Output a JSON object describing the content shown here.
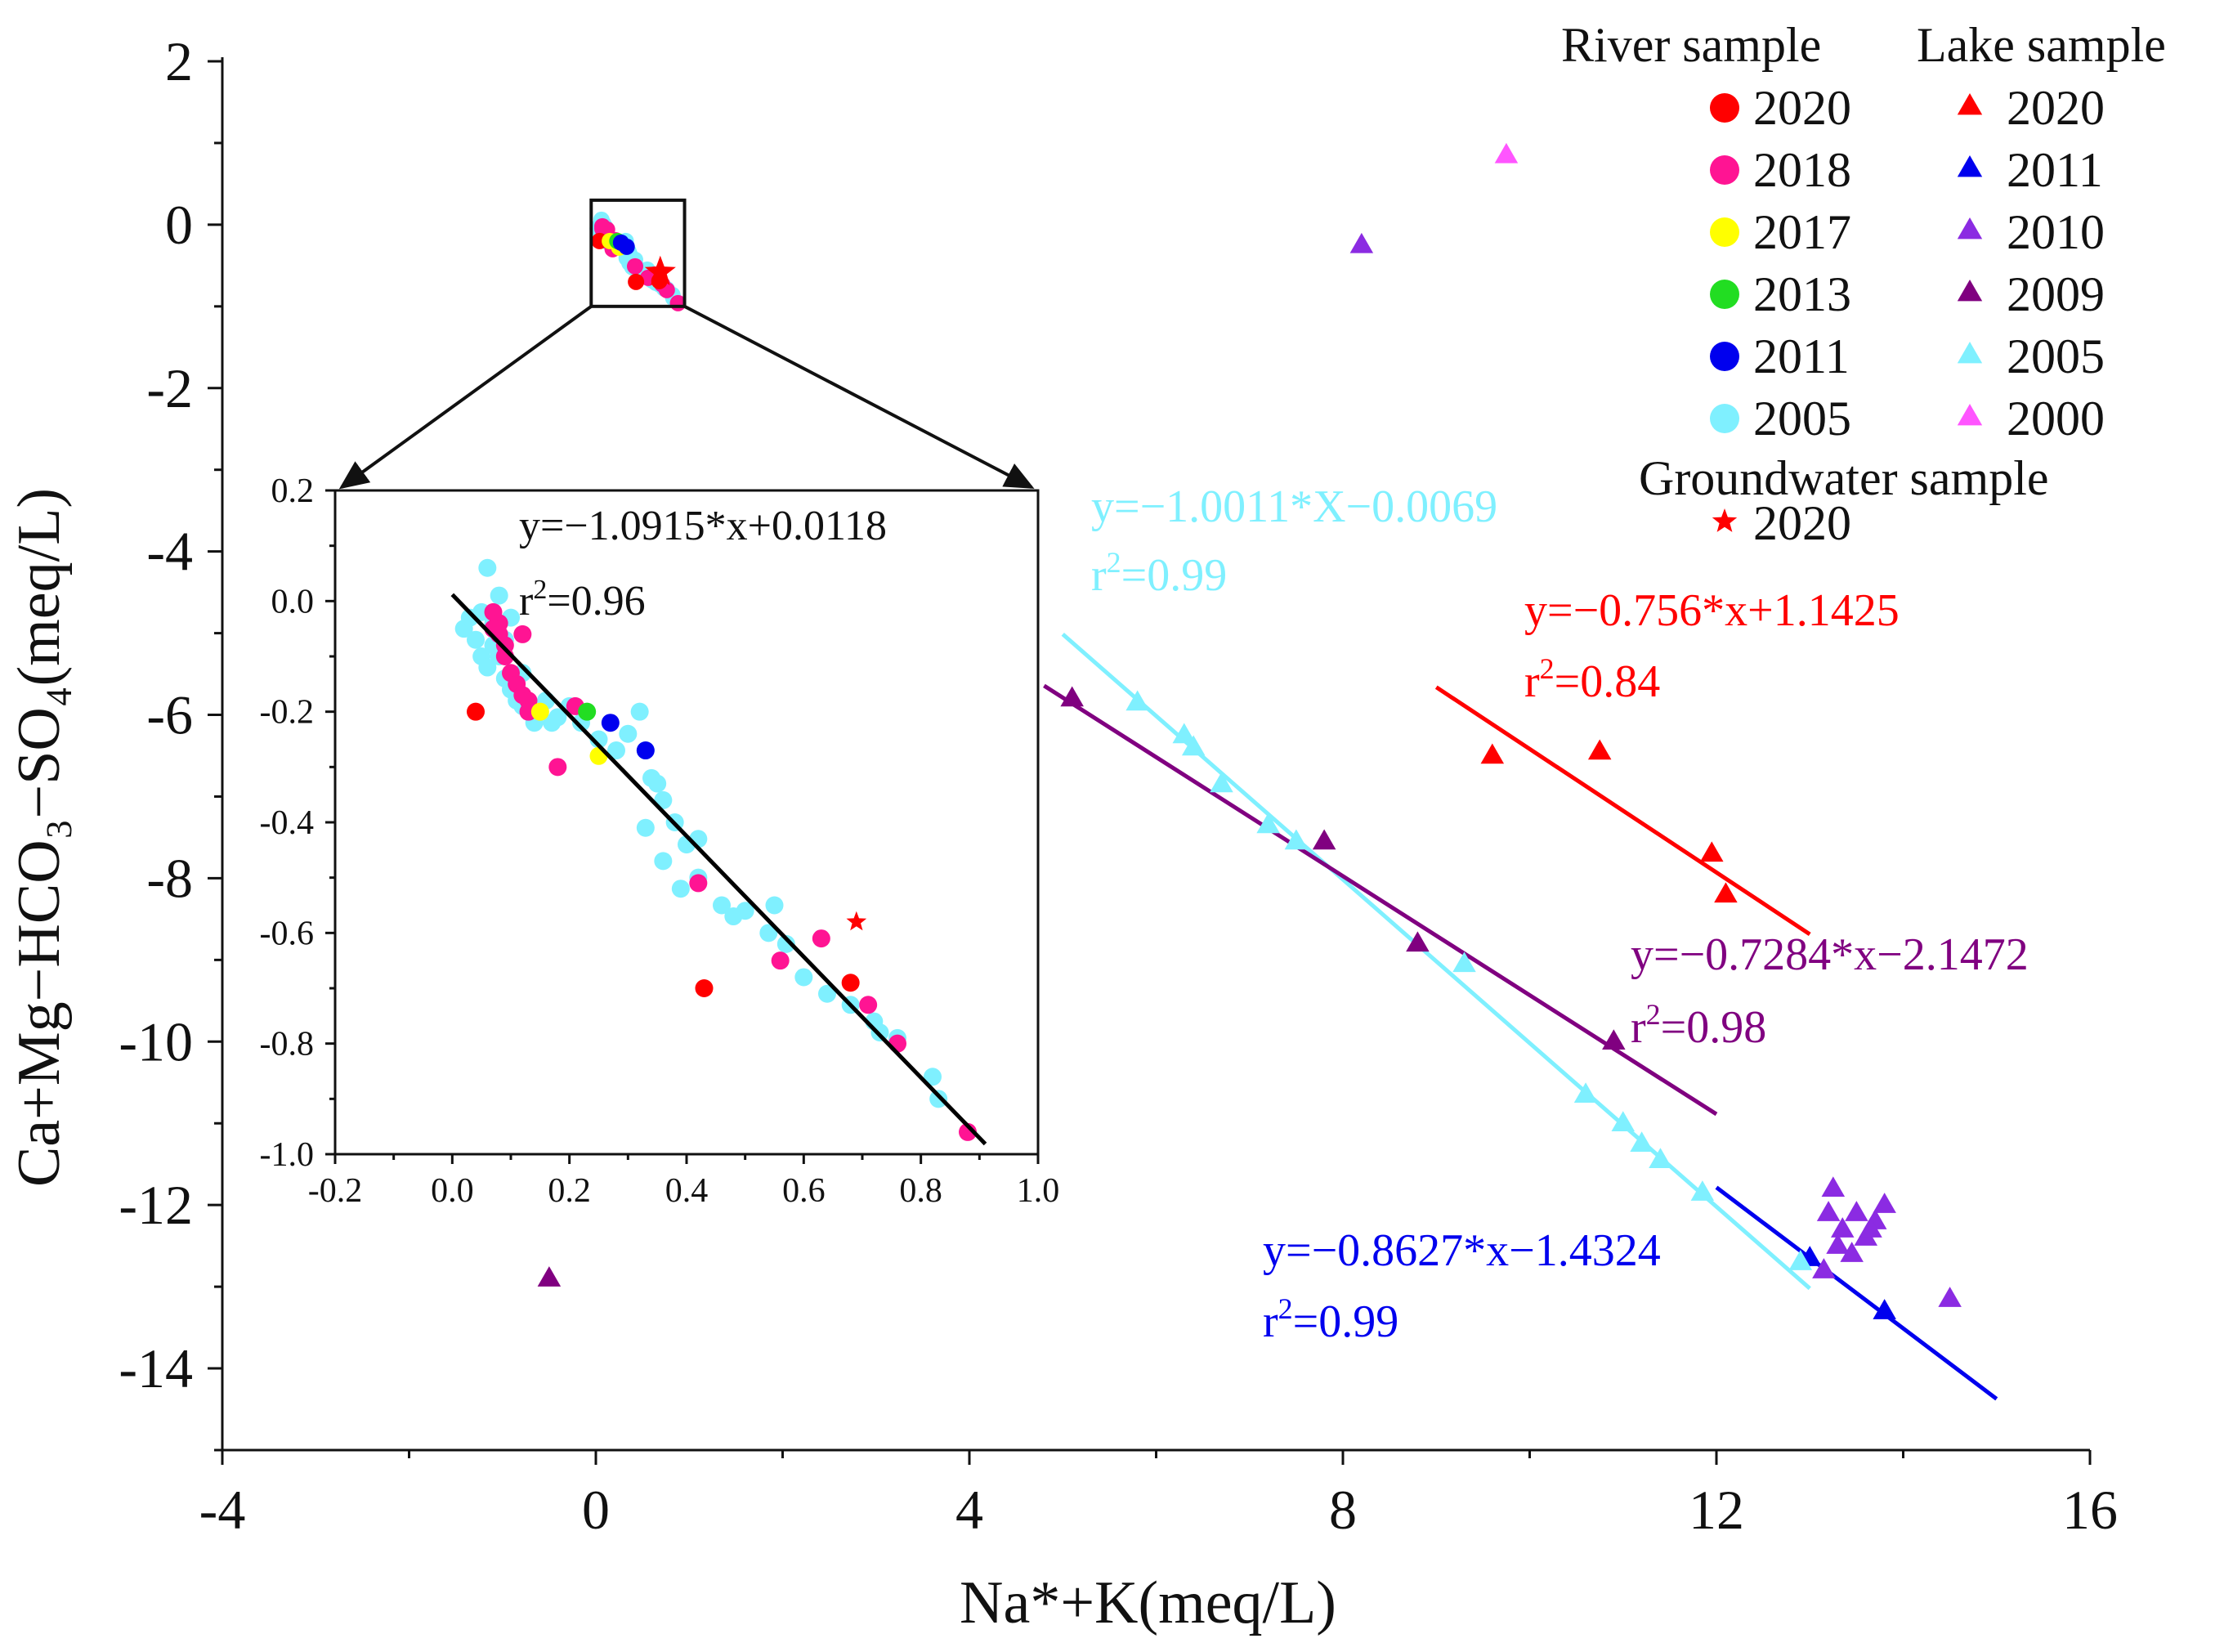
{
  "chart_data": {
    "type": "scatter",
    "main": {
      "xlabel": "Na*+K(meq/L)",
      "ylabel": "Ca+Mg−HCO₃−SO₄(meq/L)",
      "xlim": [
        -4,
        16
      ],
      "ylim": [
        -15,
        2
      ],
      "xticks": [
        -4,
        0,
        4,
        8,
        12,
        16
      ],
      "yticks": [
        2,
        0,
        -2,
        -4,
        -6,
        -8,
        -10,
        -12,
        -14
      ],
      "lake_series": [
        {
          "name": "2020",
          "color": "#ff0000",
          "points": [
            [
              9.6,
              -6.5
            ],
            [
              10.75,
              -6.45
            ],
            [
              11.95,
              -7.7
            ],
            [
              12.1,
              -8.2
            ]
          ]
        },
        {
          "name": "2011",
          "color": "#0000ee",
          "points": [
            [
              13.0,
              -12.65
            ],
            [
              13.8,
              -13.3
            ]
          ]
        },
        {
          "name": "2010",
          "color": "#8b2be2",
          "points": [
            [
              8.2,
              -0.25
            ],
            [
              13.25,
              -11.8
            ],
            [
              13.2,
              -12.1
            ],
            [
              13.35,
              -12.3
            ],
            [
              13.5,
              -12.1
            ],
            [
              13.6,
              -12.4
            ],
            [
              13.7,
              -12.2
            ],
            [
              13.8,
              -12.0
            ],
            [
              13.3,
              -12.5
            ],
            [
              13.45,
              -12.6
            ],
            [
              13.65,
              -12.3
            ],
            [
              13.15,
              -12.8
            ],
            [
              14.5,
              -13.15
            ]
          ]
        },
        {
          "name": "2009",
          "color": "#800080",
          "points": [
            [
              5.1,
              -5.8
            ],
            [
              7.8,
              -7.55
            ],
            [
              8.8,
              -8.8
            ],
            [
              10.9,
              -10.0
            ],
            [
              -0.5,
              -12.9
            ]
          ]
        },
        {
          "name": "2005",
          "color": "#7ff0ff",
          "points": [
            [
              5.8,
              -5.85
            ],
            [
              6.3,
              -6.25
            ],
            [
              6.4,
              -6.4
            ],
            [
              6.7,
              -6.85
            ],
            [
              7.2,
              -7.35
            ],
            [
              7.5,
              -7.55
            ],
            [
              9.3,
              -9.05
            ],
            [
              10.6,
              -10.65
            ],
            [
              11.0,
              -11.0
            ],
            [
              11.2,
              -11.25
            ],
            [
              11.4,
              -11.45
            ],
            [
              11.85,
              -11.85
            ],
            [
              12.9,
              -12.7
            ]
          ]
        },
        {
          "name": "2000",
          "color": "#ff55ff",
          "points": [
            [
              9.75,
              0.85
            ]
          ]
        }
      ],
      "fits": [
        {
          "name": "lake-2005-fit",
          "color": "#7ff0ff",
          "x": [
            5.0,
            13.0
          ],
          "slope": -1.0011,
          "intercept": -0.0069,
          "equation": "y=−1.0011*X−0.0069",
          "r2_value": "=0.99"
        },
        {
          "name": "lake-2020-fit",
          "color": "#ff0000",
          "x": [
            9.0,
            13.0
          ],
          "slope": -0.756,
          "intercept": 1.1425,
          "equation": "y=−0.756*x+1.1425",
          "r2_value": "=0.84"
        },
        {
          "name": "lake-2009-fit",
          "color": "#800080",
          "x": [
            4.8,
            12.0
          ],
          "slope": -0.7284,
          "intercept": -2.1472,
          "equation": "y=−0.7284*x−2.1472",
          "r2_value": "=0.98"
        },
        {
          "name": "lake-2011-fit",
          "color": "#0000ee",
          "x": [
            12.0,
            15.0
          ],
          "slope": -0.8627,
          "intercept": -1.4324,
          "equation": "y=−0.8627*x−1.4324",
          "r2_value": "=0.99"
        }
      ]
    },
    "inset": {
      "xlim": [
        -0.2,
        1.0
      ],
      "ylim": [
        -1.0,
        0.2
      ],
      "xticks": [
        -0.2,
        0.0,
        0.2,
        0.4,
        0.6,
        0.8,
        1.0
      ],
      "yticks": [
        0.2,
        0.0,
        -0.2,
        -0.4,
        -0.6,
        -0.8,
        -1.0
      ],
      "zoom_box": {
        "x": [
          -0.05,
          0.95
        ],
        "y": [
          -1.0,
          0.3
        ]
      },
      "fit": {
        "color": "#000000",
        "x": [
          0.0,
          0.91
        ],
        "slope": -1.0915,
        "intercept": 0.0118,
        "equation": "y=−1.0915*x+0.0118",
        "r2_value": "=0.96"
      },
      "river_series": [
        {
          "name": "2005",
          "color": "#7ff0ff",
          "points": [
            [
              0.02,
              -0.05
            ],
            [
              0.04,
              -0.07
            ],
            [
              0.05,
              -0.1
            ],
            [
              0.06,
              -0.12
            ],
            [
              0.07,
              -0.08
            ],
            [
              0.08,
              -0.1
            ],
            [
              0.09,
              -0.14
            ],
            [
              0.1,
              -0.16
            ],
            [
              0.11,
              -0.18
            ],
            [
              0.12,
              -0.19
            ],
            [
              0.13,
              -0.2
            ],
            [
              0.14,
              -0.22
            ],
            [
              0.15,
              -0.2
            ],
            [
              0.16,
              -0.18
            ],
            [
              0.17,
              -0.22
            ],
            [
              0.18,
              -0.21
            ],
            [
              0.03,
              -0.03
            ],
            [
              0.05,
              -0.02
            ],
            [
              0.06,
              0.06
            ],
            [
              0.08,
              0.01
            ],
            [
              0.1,
              -0.03
            ],
            [
              0.09,
              -0.07
            ],
            [
              0.12,
              -0.13
            ],
            [
              0.2,
              -0.19
            ],
            [
              0.22,
              -0.22
            ],
            [
              0.25,
              -0.25
            ],
            [
              0.28,
              -0.27
            ],
            [
              0.3,
              -0.24
            ],
            [
              0.32,
              -0.2
            ],
            [
              0.33,
              -0.27
            ],
            [
              0.34,
              -0.32
            ],
            [
              0.36,
              -0.36
            ],
            [
              0.38,
              -0.4
            ],
            [
              0.4,
              -0.44
            ],
            [
              0.33,
              -0.41
            ],
            [
              0.36,
              -0.47
            ],
            [
              0.39,
              -0.52
            ],
            [
              0.42,
              -0.5
            ],
            [
              0.46,
              -0.55
            ],
            [
              0.48,
              -0.57
            ],
            [
              0.5,
              -0.56
            ],
            [
              0.54,
              -0.6
            ],
            [
              0.57,
              -0.62
            ],
            [
              0.6,
              -0.68
            ],
            [
              0.64,
              -0.71
            ],
            [
              0.55,
              -0.55
            ],
            [
              0.68,
              -0.73
            ],
            [
              0.72,
              -0.76
            ],
            [
              0.73,
              -0.78
            ],
            [
              0.76,
              -0.79
            ],
            [
              0.82,
              -0.86
            ],
            [
              0.83,
              -0.9
            ],
            [
              0.42,
              -0.43
            ],
            [
              0.35,
              -0.33
            ],
            [
              0.07,
              -0.04
            ]
          ]
        },
        {
          "name": "2018",
          "color": "#ff1493",
          "points": [
            [
              0.07,
              -0.02
            ],
            [
              0.08,
              -0.04
            ],
            [
              0.08,
              -0.06
            ],
            [
              0.09,
              -0.1
            ],
            [
              0.1,
              -0.13
            ],
            [
              0.11,
              -0.15
            ],
            [
              0.12,
              -0.17
            ],
            [
              0.13,
              -0.18
            ],
            [
              0.12,
              -0.06
            ],
            [
              0.13,
              -0.2
            ],
            [
              0.21,
              -0.19
            ],
            [
              0.18,
              -0.3
            ],
            [
              0.42,
              -0.51
            ],
            [
              0.56,
              -0.65
            ],
            [
              0.63,
              -0.61
            ],
            [
              0.71,
              -0.73
            ],
            [
              0.76,
              -0.8
            ],
            [
              0.88,
              -0.96
            ],
            [
              0.07,
              -0.05
            ],
            [
              0.09,
              -0.08
            ]
          ]
        },
        {
          "name": "2020",
          "color": "#ff0000",
          "points": [
            [
              0.04,
              -0.2
            ],
            [
              0.43,
              -0.7
            ],
            [
              0.68,
              -0.69
            ]
          ]
        },
        {
          "name": "2017",
          "color": "#ffff00",
          "points": [
            [
              0.15,
              -0.2
            ],
            [
              0.25,
              -0.28
            ]
          ]
        },
        {
          "name": "2013",
          "color": "#22dd22",
          "points": [
            [
              0.23,
              -0.2
            ]
          ]
        },
        {
          "name": "2011",
          "color": "#0000ee",
          "points": [
            [
              0.27,
              -0.22
            ],
            [
              0.33,
              -0.27
            ]
          ]
        }
      ],
      "groundwater": [
        {
          "name": "2020",
          "color": "#ff0000",
          "points": [
            [
              0.69,
              -0.58
            ]
          ]
        }
      ]
    },
    "legend": {
      "placement": "top-right",
      "river_title": "River sample",
      "lake_title": "Lake sample",
      "groundwater_title": "Groundwater sample",
      "river_entries": [
        {
          "label": "2020",
          "color": "#ff0000"
        },
        {
          "label": "2018",
          "color": "#ff1493"
        },
        {
          "label": "2017",
          "color": "#ffff00"
        },
        {
          "label": "2013",
          "color": "#22dd22"
        },
        {
          "label": "2011",
          "color": "#0000ee"
        },
        {
          "label": "2005",
          "color": "#7ff0ff"
        }
      ],
      "lake_entries": [
        {
          "label": "2020",
          "color": "#ff0000"
        },
        {
          "label": "2011",
          "color": "#0000ee"
        },
        {
          "label": "2010",
          "color": "#8b2be2"
        },
        {
          "label": "2009",
          "color": "#800080"
        },
        {
          "label": "2005",
          "color": "#7ff0ff"
        },
        {
          "label": "2000",
          "color": "#ff55ff"
        }
      ],
      "groundwater_entries": [
        {
          "label": "2020",
          "color": "#ff0000"
        }
      ]
    }
  }
}
